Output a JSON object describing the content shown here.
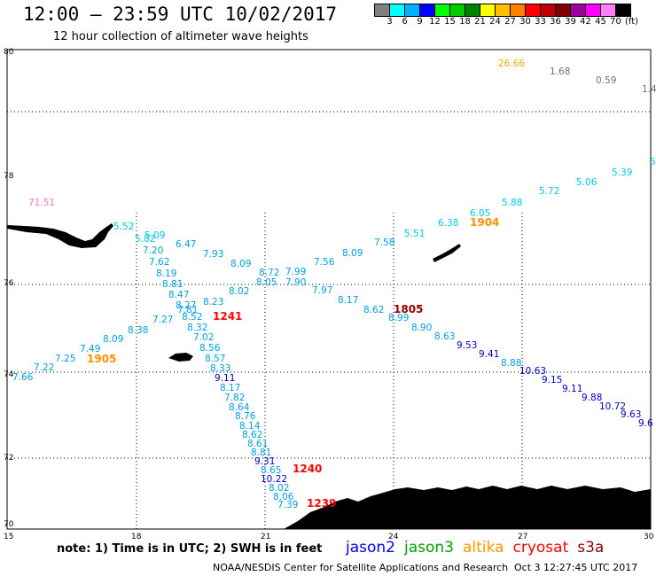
{
  "header": {
    "title": "12:00 – 23:59 UTC 10/02/2017",
    "subtitle": "12 hour collection of altimeter wave heights"
  },
  "legend": {
    "colors": [
      "#808080",
      "#00ffff",
      "#00b0ff",
      "#0000ff",
      "#00ff00",
      "#00cc00",
      "#008000",
      "#ffff00",
      "#ffc000",
      "#ff8000",
      "#ff0000",
      "#c00000",
      "#800000",
      "#a000a0",
      "#ff00ff",
      "#ff80ff",
      "#000000"
    ],
    "labels": [
      "3",
      "6",
      "9",
      "12",
      "15",
      "18",
      "21",
      "24",
      "27",
      "30",
      "33",
      "36",
      "39",
      "42",
      "45",
      "70"
    ],
    "units": "(ft)"
  },
  "axes": {
    "lat_labels": [
      "80",
      "78",
      "76",
      "74",
      "72",
      "70"
    ],
    "lon_labels": [
      "15",
      "18",
      "21",
      "24",
      "27",
      "30"
    ]
  },
  "observations": [
    {
      "v": "26.66",
      "c": "#e8b000"
    },
    {
      "v": "1.68",
      "c": "#707070"
    },
    {
      "v": "0.59",
      "c": "#707070"
    },
    {
      "v": "1.4",
      "c": "#707070"
    },
    {
      "v": "5.39",
      "c": "#00c8e8"
    },
    {
      "v": "5",
      "c": "#00c8e8"
    },
    {
      "v": "5.72",
      "c": "#00c8e8"
    },
    {
      "v": "5.06",
      "c": "#00c8e8"
    },
    {
      "v": "5.88",
      "c": "#00c8e8"
    },
    {
      "v": "6.05",
      "c": "#00c8e8"
    },
    {
      "v": "6.38",
      "c": "#00c8e8"
    },
    {
      "v": "5.51",
      "c": "#00c8e8"
    },
    {
      "v": "7.58",
      "c": "#00a0e0"
    },
    {
      "v": "8.09",
      "c": "#00a0e0"
    },
    {
      "v": "7.56",
      "c": "#00a0e0"
    },
    {
      "v": "7.99",
      "c": "#00a0e0"
    },
    {
      "v": "7.90",
      "c": "#00a0e0"
    },
    {
      "v": "7.97",
      "c": "#00a0e0"
    },
    {
      "v": "8.17",
      "c": "#00a0e0"
    },
    {
      "v": "8.62",
      "c": "#00a0e0"
    },
    {
      "v": "8.99",
      "c": "#00a0e0"
    },
    {
      "v": "8.90",
      "c": "#00a0e0"
    },
    {
      "v": "8.63",
      "c": "#00a0e0"
    },
    {
      "v": "9.53",
      "c": "#0000c8"
    },
    {
      "v": "9.41",
      "c": "#0000c8"
    },
    {
      "v": "8.88",
      "c": "#00a0e0"
    },
    {
      "v": "10.63",
      "c": "#0000c8"
    },
    {
      "v": "9.15",
      "c": "#0000c8"
    },
    {
      "v": "9.11",
      "c": "#0000c8"
    },
    {
      "v": "9.88",
      "c": "#0000c8"
    },
    {
      "v": "10.72",
      "c": "#0000c8"
    },
    {
      "v": "9.63",
      "c": "#0000c8"
    },
    {
      "v": "9.6",
      "c": "#0000c8"
    },
    {
      "v": "71.51",
      "c": "#ff70d0"
    },
    {
      "v": "5.52",
      "c": "#00c8e8"
    },
    {
      "v": "5.09",
      "c": "#00c8e8"
    },
    {
      "v": "5.82",
      "c": "#00c8e8"
    },
    {
      "v": "7.20",
      "c": "#00a0e0"
    },
    {
      "v": "6.47",
      "c": "#00a0e0"
    },
    {
      "v": "7.93",
      "c": "#00a0e0"
    },
    {
      "v": "7.62",
      "c": "#00a0e0"
    },
    {
      "v": "8.09",
      "c": "#00a0e0"
    },
    {
      "v": "8.72",
      "c": "#00a0e0"
    },
    {
      "v": "8.05",
      "c": "#00a0e0"
    },
    {
      "v": "8.19",
      "c": "#00a0e0"
    },
    {
      "v": "8.81",
      "c": "#00a0e0"
    },
    {
      "v": "8.47",
      "c": "#00a0e0"
    },
    {
      "v": "8.02",
      "c": "#00a0e0"
    },
    {
      "v": "8.27",
      "c": "#00a0e0"
    },
    {
      "v": "8.23",
      "c": "#00a0e0"
    },
    {
      "v": "7.81",
      "c": "#00a0e0"
    },
    {
      "v": "8.52",
      "c": "#00a0e0"
    },
    {
      "v": "7.27",
      "c": "#00a0e0"
    },
    {
      "v": "8.38",
      "c": "#00a0e0"
    },
    {
      "v": "8.32",
      "c": "#00a0e0"
    },
    {
      "v": "7.02",
      "c": "#00a0e0"
    },
    {
      "v": "8.09",
      "c": "#00a0e0"
    },
    {
      "v": "8.56",
      "c": "#00a0e0"
    },
    {
      "v": "7.49",
      "c": "#00a0e0"
    },
    {
      "v": "8.57",
      "c": "#00a0e0"
    },
    {
      "v": "7.25",
      "c": "#00a0e0"
    },
    {
      "v": "8.33",
      "c": "#00a0e0"
    },
    {
      "v": "7.22",
      "c": "#00a0e0"
    },
    {
      "v": "9.11",
      "c": "#0000c8"
    },
    {
      "v": "7.66",
      "c": "#00a0e0"
    },
    {
      "v": "8.17",
      "c": "#00a0e0"
    },
    {
      "v": "7.82",
      "c": "#00a0e0"
    },
    {
      "v": "8.64",
      "c": "#00a0e0"
    },
    {
      "v": "8.76",
      "c": "#00a0e0"
    },
    {
      "v": "8.14",
      "c": "#00a0e0"
    },
    {
      "v": "8.62",
      "c": "#00a0e0"
    },
    {
      "v": "8.61",
      "c": "#00a0e0"
    },
    {
      "v": "8.81",
      "c": "#00a0e0"
    },
    {
      "v": "9.31",
      "c": "#0000c8"
    },
    {
      "v": "8.65",
      "c": "#00a0e0"
    },
    {
      "v": "10.22",
      "c": "#0000c8"
    },
    {
      "v": "8.02",
      "c": "#00a0e0"
    },
    {
      "v": "8.06",
      "c": "#00a0e0"
    },
    {
      "v": "7.39",
      "c": "#00a0e0"
    }
  ],
  "passes": [
    {
      "v": "1904",
      "c": "#ff9000"
    },
    {
      "v": "1805",
      "c": "#8b0000"
    },
    {
      "v": "1241",
      "c": "#ff0000"
    },
    {
      "v": "1905",
      "c": "#ff9000"
    },
    {
      "v": "1240",
      "c": "#ff0000"
    },
    {
      "v": "1239",
      "c": "#ff0000"
    }
  ],
  "footer": {
    "note": "note: 1) Time is in UTC; 2) SWH is in feet",
    "satellites": [
      {
        "name": "jason2",
        "color": "#0000ff"
      },
      {
        "name": "jason3",
        "color": "#00a000"
      },
      {
        "name": "altika",
        "color": "#ff9900"
      },
      {
        "name": "cryosat",
        "color": "#ff0000"
      },
      {
        "name": "s3a",
        "color": "#8b0000"
      }
    ],
    "credit": "NOAA/NESDIS Center for Satellite Applications and Research",
    "timestamp": "Oct  3 12:27:45 UTC 2017"
  }
}
